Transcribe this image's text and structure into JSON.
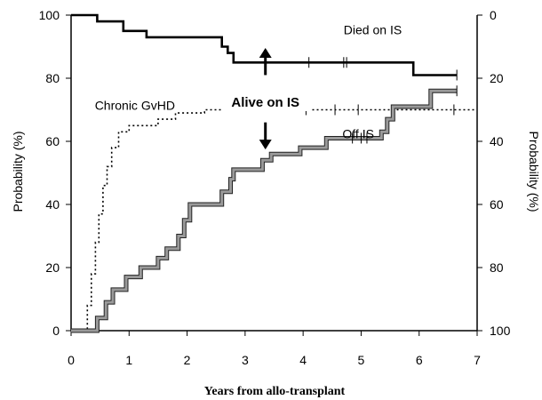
{
  "chart_data": {
    "type": "line",
    "title": "",
    "xlabel": "Years from allo-transplant",
    "ylabel_left": "Probability (%)",
    "ylabel_right": "Probability (%)",
    "xlim": [
      0,
      7
    ],
    "ylim_left": [
      0,
      100
    ],
    "ylim_right": [
      100,
      0
    ],
    "x_ticks": [
      "0",
      "1",
      "2",
      "3",
      "4",
      "5",
      "6",
      "7"
    ],
    "y_ticks_left": [
      "0",
      "20",
      "40",
      "60",
      "80",
      "100"
    ],
    "y_ticks_right": [
      "0",
      "20",
      "40",
      "60",
      "80",
      "100"
    ],
    "grid": false,
    "legend": "none",
    "series": [
      {
        "name": "Died on IS",
        "axis": "right",
        "step": true,
        "color": "#000000",
        "points": [
          [
            0,
            0
          ],
          [
            0.45,
            0
          ],
          [
            0.45,
            2
          ],
          [
            0.9,
            2
          ],
          [
            0.9,
            5
          ],
          [
            1.3,
            5
          ],
          [
            1.3,
            7
          ],
          [
            2.6,
            7
          ],
          [
            2.6,
            10
          ],
          [
            2.7,
            10
          ],
          [
            2.7,
            12
          ],
          [
            2.8,
            12
          ],
          [
            2.8,
            15
          ],
          [
            5.9,
            15
          ],
          [
            5.9,
            19
          ],
          [
            6.65,
            19
          ]
        ],
        "censor_x": [
          4.1,
          4.7,
          4.75,
          6.65
        ]
      },
      {
        "name": "Off IS",
        "axis": "left",
        "step": true,
        "color": "#909090",
        "points": [
          [
            0,
            0
          ],
          [
            0.45,
            0
          ],
          [
            0.45,
            4
          ],
          [
            0.6,
            4
          ],
          [
            0.6,
            9
          ],
          [
            0.72,
            9
          ],
          [
            0.72,
            13
          ],
          [
            0.95,
            13
          ],
          [
            0.95,
            17
          ],
          [
            1.2,
            17
          ],
          [
            1.2,
            20
          ],
          [
            1.5,
            20
          ],
          [
            1.5,
            23
          ],
          [
            1.65,
            23
          ],
          [
            1.65,
            26
          ],
          [
            1.85,
            26
          ],
          [
            1.85,
            30
          ],
          [
            1.95,
            30
          ],
          [
            1.95,
            35
          ],
          [
            2.05,
            35
          ],
          [
            2.05,
            40
          ],
          [
            2.6,
            40
          ],
          [
            2.6,
            44
          ],
          [
            2.75,
            44
          ],
          [
            2.75,
            48
          ],
          [
            2.8,
            48
          ],
          [
            2.8,
            51
          ],
          [
            3.3,
            51
          ],
          [
            3.3,
            54
          ],
          [
            3.45,
            54
          ],
          [
            3.45,
            56
          ],
          [
            3.95,
            56
          ],
          [
            3.95,
            58
          ],
          [
            4.4,
            58
          ],
          [
            4.4,
            61
          ],
          [
            5.35,
            61
          ],
          [
            5.35,
            63
          ],
          [
            5.45,
            63
          ],
          [
            5.45,
            67
          ],
          [
            5.55,
            67
          ],
          [
            5.55,
            71
          ],
          [
            6.2,
            71
          ],
          [
            6.2,
            76
          ],
          [
            6.65,
            76
          ]
        ],
        "censor_x": [
          4.85,
          5.0,
          5.1,
          6.65
        ]
      },
      {
        "name": "Chronic GvHD",
        "axis": "left",
        "step": true,
        "dotted": true,
        "color": "#000000",
        "points": [
          [
            0,
            0
          ],
          [
            0.28,
            0
          ],
          [
            0.28,
            8
          ],
          [
            0.35,
            8
          ],
          [
            0.35,
            18
          ],
          [
            0.42,
            18
          ],
          [
            0.42,
            28
          ],
          [
            0.48,
            28
          ],
          [
            0.48,
            37
          ],
          [
            0.55,
            37
          ],
          [
            0.55,
            46
          ],
          [
            0.62,
            46
          ],
          [
            0.62,
            52
          ],
          [
            0.7,
            52
          ],
          [
            0.7,
            58
          ],
          [
            0.82,
            58
          ],
          [
            0.82,
            63
          ],
          [
            1.0,
            63
          ],
          [
            1.0,
            65
          ],
          [
            1.5,
            65
          ],
          [
            1.5,
            67
          ],
          [
            1.8,
            67
          ],
          [
            1.8,
            69
          ],
          [
            2.3,
            69
          ],
          [
            2.3,
            70
          ],
          [
            7.0,
            70
          ]
        ],
        "censor_x": [
          4.05,
          4.55,
          4.95,
          5.55,
          6.6
        ]
      }
    ],
    "annotations": [
      {
        "text": "Died on IS",
        "x": 5.2,
        "y": 94
      },
      {
        "text": "Chronic GvHD",
        "x": 1.1,
        "y": 70
      },
      {
        "text": "Alive on IS",
        "x": 3.35,
        "y": 71,
        "bold": true
      },
      {
        "text": "Off IS",
        "x": 4.95,
        "y": 61
      }
    ],
    "arrows": [
      {
        "x": 3.35,
        "from": 81,
        "to": 89
      },
      {
        "x": 3.35,
        "from": 66,
        "to": 58
      }
    ]
  }
}
